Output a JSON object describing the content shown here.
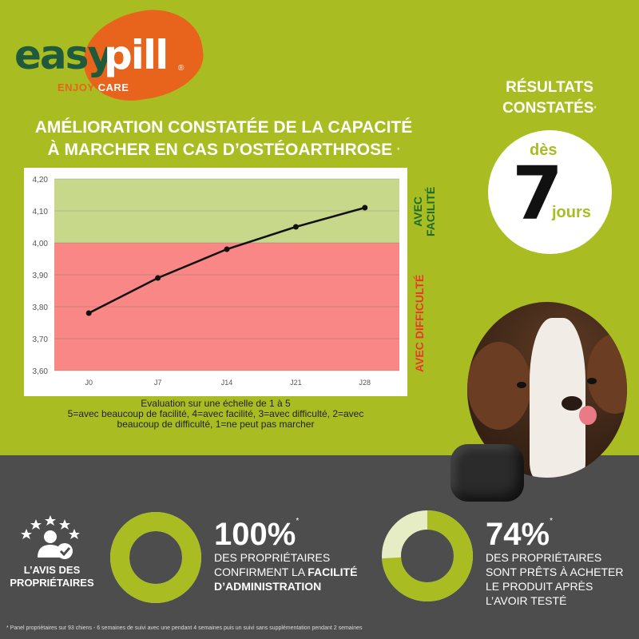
{
  "brand": {
    "name_part1": "easy",
    "name_part2": "pill",
    "registered": "®",
    "tagline_part1": "ENJOY",
    "tagline_part2": "CARE",
    "colors": {
      "green": "#a9bd22",
      "orange": "#e8641c",
      "dark_green": "#1f5a3c",
      "grey": "#4d4d4d"
    }
  },
  "chart_title": {
    "line1": "AMÉLIORATION CONSTATÉE DE LA CAPACITÉ",
    "line2": "À MARCHER EN CAS D’OSTÉOARTHROSE",
    "star": "*"
  },
  "chart_data": {
    "type": "line",
    "categories": [
      "J0",
      "J7",
      "J14",
      "J21",
      "J28"
    ],
    "values": [
      3.78,
      3.89,
      3.98,
      4.05,
      4.11
    ],
    "ylim": [
      3.6,
      4.2
    ],
    "yticks": [
      "3,60",
      "3,70",
      "3,80",
      "3,90",
      "4,00",
      "4,10",
      "4,20"
    ],
    "bands": [
      {
        "label_line1": "AVEC",
        "label_line2": "FACILITÉ",
        "from": 4.0,
        "to": 4.2,
        "color": "#c8d88a",
        "label_color": "#1f6b2a"
      },
      {
        "label": "AVEC DIFFICULTÉ",
        "from": 3.6,
        "to": 4.0,
        "color": "#f98785",
        "label_color": "#e8392c"
      }
    ],
    "grid": true,
    "line_color": "#111111"
  },
  "scale_caption": {
    "line1": "Evaluation sur une échelle de 1 à 5",
    "line2": "5=avec beaucoup de facilité, 4=avec facilité, 3=avec difficulté, 2=avec",
    "line3": "beaucoup de difficulté, 1=ne peut pas marcher"
  },
  "results": {
    "title_line1": "RÉSULTATS",
    "title_line2": "CONSTATÉS",
    "star": "*",
    "des": "dès",
    "number": "7",
    "unit": "jours"
  },
  "owners": {
    "label_line1": "L’AVIS DES",
    "label_line2": "PROPRIÉTAIRES",
    "icon": "owner-review-icon"
  },
  "stats": [
    {
      "value": "100%",
      "percent": 100,
      "star": "*",
      "line1": "DES PROPRIÉTAIRES",
      "line2_prefix": "CONFIRMENT LA ",
      "line2_bold": "FACILITÉ",
      "line3_bold": "D’ADMINISTRATION"
    },
    {
      "value": "74%",
      "percent": 74,
      "star": "*",
      "line1": "DES PROPRIÉTAIRES",
      "line2": "SONT PRÊTS À ACHETER",
      "line3": "LE PRODUIT APRÈS",
      "line4": "L’AVOIR TESTÉ"
    }
  ],
  "footnote": "* Panel propriétaires sur 93 chiens - 6 semaines de suivi avec une pendant 4 semaines puis un suivi sans supplémentation pendant 2 semaines"
}
